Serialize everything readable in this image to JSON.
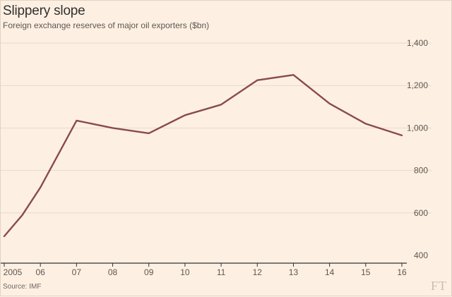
{
  "chart_data": {
    "type": "line",
    "title": "Slippery slope",
    "subtitle": "Foreign exchange reserves of major oil exporters ($bn)",
    "source": "Source: IMF",
    "brand": "FT",
    "xlabel": "",
    "ylabel": "",
    "x_ticks": [
      "2005",
      "06",
      "07",
      "08",
      "09",
      "10",
      "11",
      "12",
      "13",
      "14",
      "15",
      "16"
    ],
    "y_ticks": [
      "400",
      "600",
      "800",
      "1,000",
      "1,200",
      "1,400"
    ],
    "y_tick_values": [
      400,
      600,
      800,
      1000,
      1200,
      1400
    ],
    "ylim": [
      400,
      1400
    ],
    "xlim": [
      2005,
      2016
    ],
    "grid": true,
    "series": [
      {
        "name": "Foreign exchange reserves",
        "color": "#8a4a4f",
        "points": [
          {
            "x": 2005.0,
            "y": 490
          },
          {
            "x": 2005.5,
            "y": 590
          },
          {
            "x": 2006.0,
            "y": 720
          },
          {
            "x": 2007.0,
            "y": 1035
          },
          {
            "x": 2008.0,
            "y": 1000
          },
          {
            "x": 2009.0,
            "y": 975
          },
          {
            "x": 2010.0,
            "y": 1060
          },
          {
            "x": 2011.0,
            "y": 1110
          },
          {
            "x": 2012.0,
            "y": 1225
          },
          {
            "x": 2013.0,
            "y": 1250
          },
          {
            "x": 2014.0,
            "y": 1115
          },
          {
            "x": 2015.0,
            "y": 1020
          },
          {
            "x": 2016.0,
            "y": 965
          }
        ]
      }
    ]
  },
  "colors": {
    "background": "#fdf0e3",
    "grid": "#e6d9cb",
    "axis": "#33302e",
    "line": "#8a4a4f"
  }
}
